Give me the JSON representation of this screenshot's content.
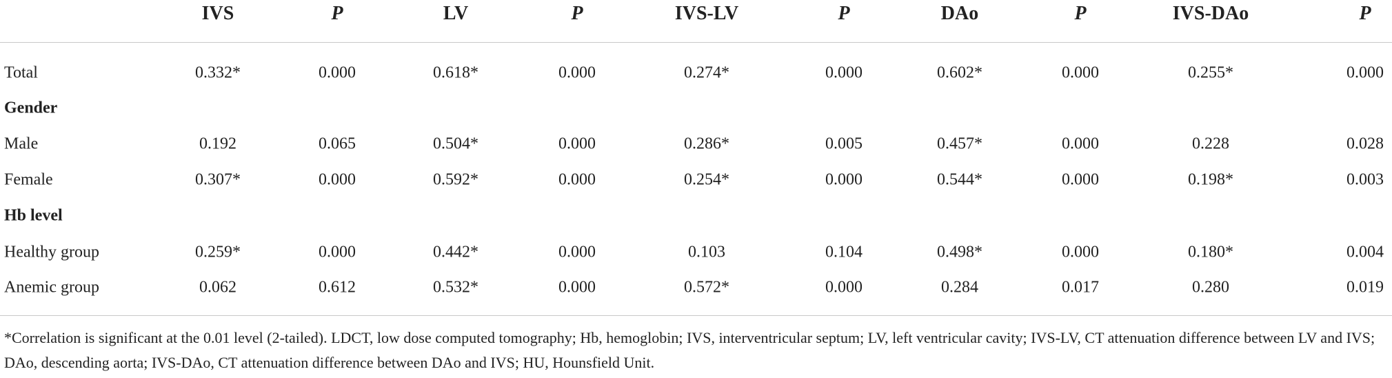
{
  "table": {
    "columns": [
      {
        "label": "IVS",
        "italic": false
      },
      {
        "label": "P",
        "italic": true
      },
      {
        "label": "LV",
        "italic": false
      },
      {
        "label": "P",
        "italic": true
      },
      {
        "label": "IVS-LV",
        "italic": false
      },
      {
        "label": "P",
        "italic": true
      },
      {
        "label": "DAo",
        "italic": false
      },
      {
        "label": "P",
        "italic": true
      },
      {
        "label": "IVS-DAo",
        "italic": false
      },
      {
        "label": "P",
        "italic": true
      }
    ],
    "rows": [
      {
        "label": "Total",
        "cells": [
          "0.332*",
          "0.000",
          "0.618*",
          "0.000",
          "0.274*",
          "0.000",
          "0.602*",
          "0.000",
          "0.255*",
          "0.000"
        ]
      },
      {
        "section": "Gender"
      },
      {
        "label": "Male",
        "cells": [
          "0.192",
          "0.065",
          "0.504*",
          "0.000",
          "0.286*",
          "0.005",
          "0.457*",
          "0.000",
          "0.228",
          "0.028"
        ]
      },
      {
        "label": "Female",
        "cells": [
          "0.307*",
          "0.000",
          "0.592*",
          "0.000",
          "0.254*",
          "0.000",
          "0.544*",
          "0.000",
          "0.198*",
          "0.003"
        ]
      },
      {
        "section": "Hb level"
      },
      {
        "label": "Healthy group",
        "cells": [
          "0.259*",
          "0.000",
          "0.442*",
          "0.000",
          "0.103",
          "0.104",
          "0.498*",
          "0.000",
          "0.180*",
          "0.004"
        ]
      },
      {
        "label": "Anemic group",
        "cells": [
          "0.062",
          "0.612",
          "0.532*",
          "0.000",
          "0.572*",
          "0.000",
          "0.284",
          "0.017",
          "0.280",
          "0.019"
        ]
      }
    ],
    "footnote": "*Correlation is significant at the 0.01 level (2-tailed). LDCT, low dose computed tomography; Hb, hemoglobin; IVS, interventricular septum; LV, left ventricular cavity; IVS-LV, CT attenuation difference between LV and IVS; DAo, descending aorta; IVS-DAo, CT attenuation difference between DAo and IVS; HU, Hounsfield Unit."
  }
}
